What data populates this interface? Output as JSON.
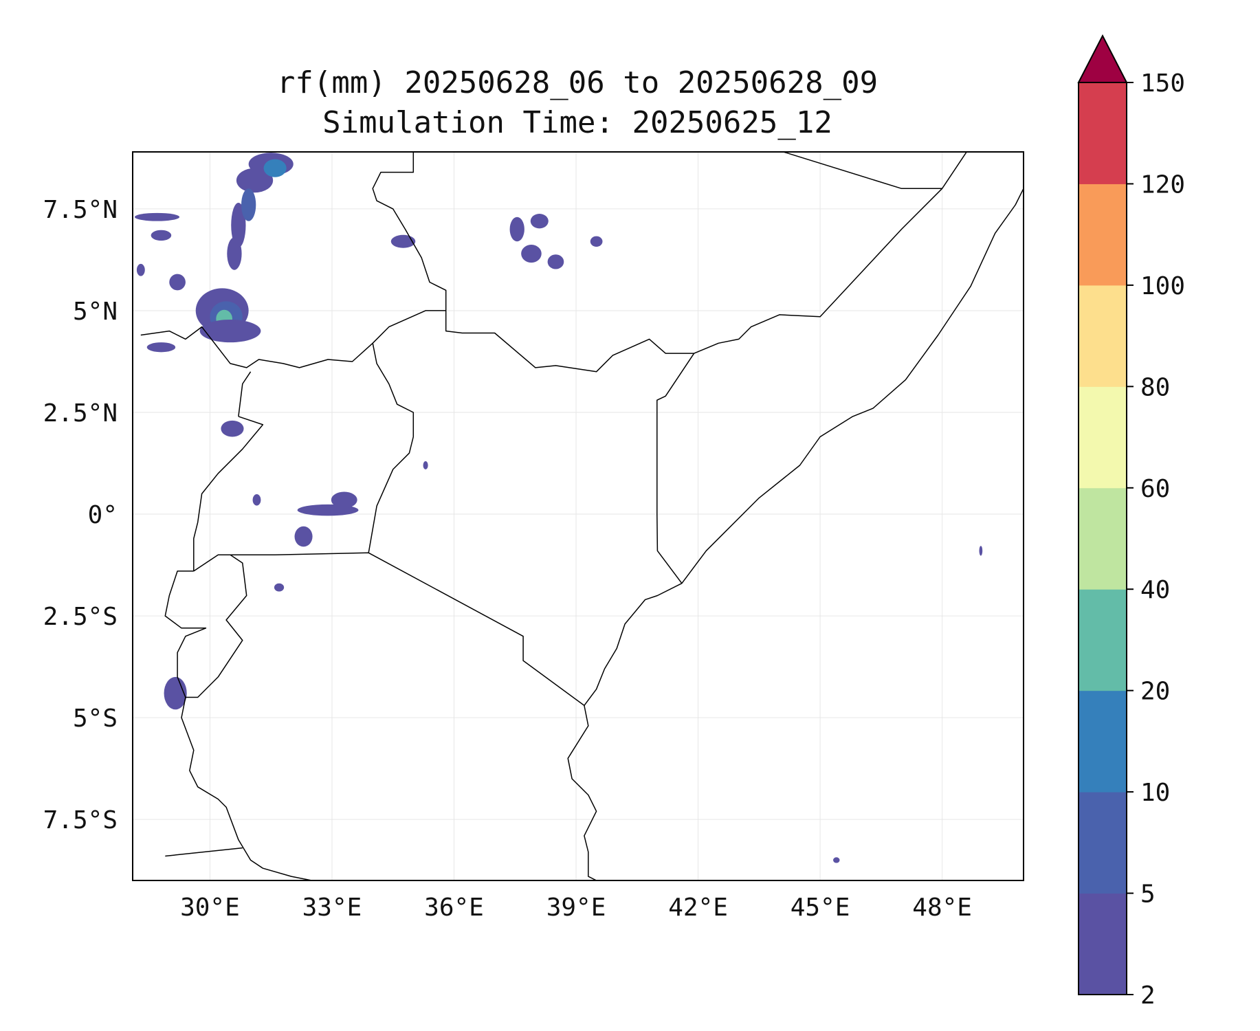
{
  "title": {
    "line1": "rf(mm) 20250628_06 to 20250628_09",
    "line2": "Simulation Time: 20250625_12"
  },
  "map": {
    "lon_range": [
      28.1,
      50.0
    ],
    "lat_range": [
      -9.0,
      8.9
    ],
    "x_ticks": [
      {
        "value": 30,
        "label": "30°E"
      },
      {
        "value": 33,
        "label": "33°E"
      },
      {
        "value": 36,
        "label": "36°E"
      },
      {
        "value": 39,
        "label": "39°E"
      },
      {
        "value": 42,
        "label": "42°E"
      },
      {
        "value": 45,
        "label": "45°E"
      },
      {
        "value": 48,
        "label": "48°E"
      }
    ],
    "y_ticks": [
      {
        "value": 7.5,
        "label": "7.5°N"
      },
      {
        "value": 5,
        "label": "5°N"
      },
      {
        "value": 2.5,
        "label": "2.5°N"
      },
      {
        "value": 0,
        "label": "0°"
      },
      {
        "value": -2.5,
        "label": "2.5°S"
      },
      {
        "value": -5,
        "label": "5°S"
      },
      {
        "value": -7.5,
        "label": "7.5°S"
      }
    ],
    "borders": [
      [
        [
          28.3,
          4.4
        ],
        [
          29.0,
          4.5
        ],
        [
          29.4,
          4.3
        ],
        [
          29.8,
          4.6
        ],
        [
          30.5,
          3.7
        ],
        [
          30.9,
          3.6
        ],
        [
          31.2,
          3.8
        ],
        [
          31.8,
          3.7
        ],
        [
          32.2,
          3.6
        ],
        [
          32.9,
          3.8
        ],
        [
          33.5,
          3.75
        ],
        [
          34.0,
          4.2
        ],
        [
          34.4,
          4.6
        ],
        [
          35.3,
          5.0
        ],
        [
          35.8,
          5.0
        ],
        [
          35.8,
          4.5
        ],
        [
          36.2,
          4.45
        ],
        [
          37.0,
          4.45
        ],
        [
          38.0,
          3.6
        ],
        [
          38.5,
          3.65
        ],
        [
          39.5,
          3.5
        ],
        [
          39.9,
          3.9
        ],
        [
          40.8,
          4.3
        ],
        [
          41.2,
          3.95
        ],
        [
          41.9,
          3.95
        ]
      ],
      [
        [
          34.0,
          4.2
        ],
        [
          34.1,
          3.7
        ],
        [
          34.4,
          3.2
        ],
        [
          34.6,
          2.7
        ],
        [
          35.0,
          2.5
        ],
        [
          35.0,
          1.9
        ],
        [
          34.9,
          1.5
        ],
        [
          34.5,
          1.1
        ],
        [
          34.1,
          0.2
        ],
        [
          33.9,
          -0.95
        ]
      ],
      [
        [
          30.7,
          2.4
        ],
        [
          31.3,
          2.2
        ],
        [
          30.8,
          1.6
        ],
        [
          30.2,
          1.0
        ],
        [
          29.8,
          0.5
        ],
        [
          29.7,
          -0.2
        ],
        [
          29.6,
          -0.6
        ],
        [
          29.6,
          -1.4
        ]
      ],
      [
        [
          29.6,
          -1.4
        ],
        [
          30.2,
          -1.0
        ],
        [
          30.8,
          -1.0
        ],
        [
          31.6,
          -1.0
        ],
        [
          33.9,
          -0.95
        ],
        [
          37.7,
          -3.0
        ],
        [
          37.7,
          -3.6
        ],
        [
          39.2,
          -4.7
        ]
      ],
      [
        [
          30.7,
          2.4
        ],
        [
          30.8,
          3.2
        ],
        [
          31.0,
          3.5
        ]
      ],
      [
        [
          29.6,
          -1.4
        ],
        [
          29.2,
          -1.4
        ],
        [
          29.0,
          -2.0
        ],
        [
          28.9,
          -2.5
        ],
        [
          29.3,
          -2.8
        ],
        [
          29.9,
          -2.8
        ],
        [
          29.4,
          -3.0
        ],
        [
          29.2,
          -3.4
        ],
        [
          29.2,
          -4.0
        ],
        [
          29.4,
          -4.5
        ],
        [
          29.7,
          -4.5
        ],
        [
          30.2,
          -4.0
        ],
        [
          30.8,
          -3.1
        ],
        [
          30.4,
          -2.6
        ],
        [
          30.9,
          -2.0
        ],
        [
          30.8,
          -1.2
        ],
        [
          30.5,
          -1.0
        ]
      ],
      [
        [
          29.4,
          -4.5
        ],
        [
          29.3,
          -5.0
        ],
        [
          29.6,
          -5.8
        ],
        [
          29.5,
          -6.3
        ],
        [
          29.7,
          -6.7
        ],
        [
          30.2,
          -7.0
        ],
        [
          30.4,
          -7.2
        ],
        [
          30.7,
          -8.0
        ],
        [
          31.0,
          -8.5
        ],
        [
          31.3,
          -8.7
        ],
        [
          32.0,
          -8.9
        ],
        [
          32.5,
          -9.0
        ]
      ],
      [
        [
          28.9,
          -8.4
        ],
        [
          30.8,
          -8.2
        ]
      ],
      [
        [
          35.0,
          8.9
        ],
        [
          35.0,
          8.4
        ],
        [
          34.2,
          8.4
        ],
        [
          34.0,
          8.0
        ],
        [
          34.1,
          7.7
        ],
        [
          34.5,
          7.5
        ],
        [
          34.8,
          7.0
        ],
        [
          35.2,
          6.3
        ],
        [
          35.4,
          5.7
        ],
        [
          35.8,
          5.5
        ],
        [
          35.8,
          5.0
        ]
      ],
      [
        [
          41.9,
          3.95
        ],
        [
          41.2,
          2.9
        ],
        [
          40.99,
          2.8
        ],
        [
          40.99,
          0.0
        ],
        [
          41.0,
          -0.9
        ],
        [
          41.6,
          -1.7
        ]
      ],
      [
        [
          41.9,
          3.95
        ],
        [
          42.5,
          4.2
        ],
        [
          43.0,
          4.3
        ],
        [
          43.3,
          4.6
        ],
        [
          44.0,
          4.9
        ],
        [
          45.0,
          4.85
        ],
        [
          47.0,
          7.0
        ],
        [
          48.0,
          8.0
        ],
        [
          48.6,
          8.9
        ]
      ],
      [
        [
          44.1,
          8.9
        ],
        [
          47.0,
          8.0
        ],
        [
          48.0,
          8.0
        ]
      ],
      [
        [
          39.2,
          -4.7
        ],
        [
          39.3,
          -5.2
        ],
        [
          38.8,
          -6.0
        ],
        [
          38.9,
          -6.5
        ],
        [
          39.3,
          -6.9
        ],
        [
          39.5,
          -7.3
        ],
        [
          39.2,
          -7.9
        ],
        [
          39.3,
          -8.3
        ],
        [
          39.3,
          -8.9
        ],
        [
          39.5,
          -9.0
        ]
      ],
      [
        [
          39.2,
          -4.7
        ],
        [
          39.5,
          -4.3
        ],
        [
          39.7,
          -3.8
        ],
        [
          40.0,
          -3.3
        ],
        [
          40.2,
          -2.7
        ],
        [
          40.7,
          -2.1
        ],
        [
          41.0,
          -2.0
        ],
        [
          41.6,
          -1.7
        ],
        [
          42.2,
          -0.9
        ],
        [
          42.7,
          -0.4
        ],
        [
          43.5,
          0.4
        ],
        [
          44.5,
          1.2
        ],
        [
          45.0,
          1.9
        ],
        [
          45.8,
          2.4
        ],
        [
          46.3,
          2.6
        ],
        [
          47.1,
          3.3
        ],
        [
          47.9,
          4.4
        ],
        [
          48.7,
          5.6
        ],
        [
          49.3,
          6.9
        ],
        [
          49.8,
          7.6
        ],
        [
          50.0,
          8.0
        ]
      ]
    ],
    "rain_cells": [
      {
        "lon": 31.5,
        "lat": 8.6,
        "rx": 0.55,
        "ry": 0.28,
        "level": "2-5"
      },
      {
        "lon": 31.1,
        "lat": 8.2,
        "rx": 0.45,
        "ry": 0.3,
        "level": "2-5"
      },
      {
        "lon": 31.6,
        "lat": 8.5,
        "rx": 0.28,
        "ry": 0.22,
        "level": "10-20"
      },
      {
        "lon": 30.7,
        "lat": 7.1,
        "rx": 0.18,
        "ry": 0.55,
        "level": "2-5"
      },
      {
        "lon": 30.95,
        "lat": 7.6,
        "rx": 0.18,
        "ry": 0.4,
        "level": "5-10"
      },
      {
        "lon": 30.6,
        "lat": 6.4,
        "rx": 0.18,
        "ry": 0.4,
        "level": "2-5"
      },
      {
        "lon": 30.3,
        "lat": 5.0,
        "rx": 0.65,
        "ry": 0.55,
        "level": "2-5"
      },
      {
        "lon": 30.4,
        "lat": 4.85,
        "rx": 0.4,
        "ry": 0.38,
        "level": "5-10"
      },
      {
        "lon": 30.35,
        "lat": 4.8,
        "rx": 0.2,
        "ry": 0.22,
        "level": "20-40"
      },
      {
        "lon": 30.5,
        "lat": 4.5,
        "rx": 0.75,
        "ry": 0.28,
        "level": "2-5"
      },
      {
        "lon": 29.2,
        "lat": 5.7,
        "rx": 0.2,
        "ry": 0.2,
        "level": "2-5"
      },
      {
        "lon": 28.7,
        "lat": 7.3,
        "rx": 0.55,
        "ry": 0.1,
        "level": "2-5"
      },
      {
        "lon": 28.8,
        "lat": 6.85,
        "rx": 0.25,
        "ry": 0.13,
        "level": "2-5"
      },
      {
        "lon": 28.8,
        "lat": 4.1,
        "rx": 0.35,
        "ry": 0.12,
        "level": "2-5"
      },
      {
        "lon": 34.75,
        "lat": 6.7,
        "rx": 0.3,
        "ry": 0.16,
        "level": "2-5"
      },
      {
        "lon": 37.55,
        "lat": 7.0,
        "rx": 0.18,
        "ry": 0.3,
        "level": "2-5"
      },
      {
        "lon": 37.9,
        "lat": 6.4,
        "rx": 0.25,
        "ry": 0.22,
        "level": "2-5"
      },
      {
        "lon": 38.1,
        "lat": 7.2,
        "rx": 0.22,
        "ry": 0.18,
        "level": "2-5"
      },
      {
        "lon": 38.5,
        "lat": 6.2,
        "rx": 0.2,
        "ry": 0.18,
        "level": "2-5"
      },
      {
        "lon": 39.5,
        "lat": 6.7,
        "rx": 0.15,
        "ry": 0.13,
        "level": "2-5"
      },
      {
        "lon": 30.55,
        "lat": 2.1,
        "rx": 0.28,
        "ry": 0.2,
        "level": "2-5"
      },
      {
        "lon": 32.9,
        "lat": 0.1,
        "rx": 0.75,
        "ry": 0.14,
        "level": "2-5"
      },
      {
        "lon": 33.3,
        "lat": 0.35,
        "rx": 0.32,
        "ry": 0.2,
        "level": "2-5"
      },
      {
        "lon": 32.3,
        "lat": -0.55,
        "rx": 0.22,
        "ry": 0.25,
        "level": "2-5"
      },
      {
        "lon": 31.15,
        "lat": 0.35,
        "rx": 0.1,
        "ry": 0.14,
        "level": "2-5"
      },
      {
        "lon": 31.7,
        "lat": -1.8,
        "rx": 0.12,
        "ry": 0.1,
        "level": "2-5"
      },
      {
        "lon": 29.15,
        "lat": -4.4,
        "rx": 0.28,
        "ry": 0.4,
        "level": "2-5"
      },
      {
        "lon": 48.95,
        "lat": -0.9,
        "rx": 0.04,
        "ry": 0.12,
        "level": "2-5"
      },
      {
        "lon": 45.4,
        "lat": -8.5,
        "rx": 0.08,
        "ry": 0.07,
        "level": "2-5"
      },
      {
        "lon": 35.3,
        "lat": 1.2,
        "rx": 0.06,
        "ry": 0.1,
        "level": "2-5"
      },
      {
        "lon": 28.3,
        "lat": 6.0,
        "rx": 0.1,
        "ry": 0.15,
        "level": "2-5"
      }
    ]
  },
  "colorbar": {
    "ticks": [
      "2",
      "5",
      "10",
      "20",
      "40",
      "60",
      "80",
      "100",
      "120",
      "150"
    ],
    "levels": [
      {
        "range": "2-5",
        "color": "#5a52a3"
      },
      {
        "range": "5-10",
        "color": "#4a62ad"
      },
      {
        "range": "10-20",
        "color": "#3580bb"
      },
      {
        "range": "20-40",
        "color": "#63bca8"
      },
      {
        "range": "40-60",
        "color": "#bfe5a0"
      },
      {
        "range": "60-80",
        "color": "#f3f9ae"
      },
      {
        "range": "80-100",
        "color": "#fddf8d"
      },
      {
        "range": "100-120",
        "color": "#f99b59"
      },
      {
        "range": "120-150",
        "color": "#d53e4f"
      }
    ],
    "extend_color": "#9e0142"
  }
}
